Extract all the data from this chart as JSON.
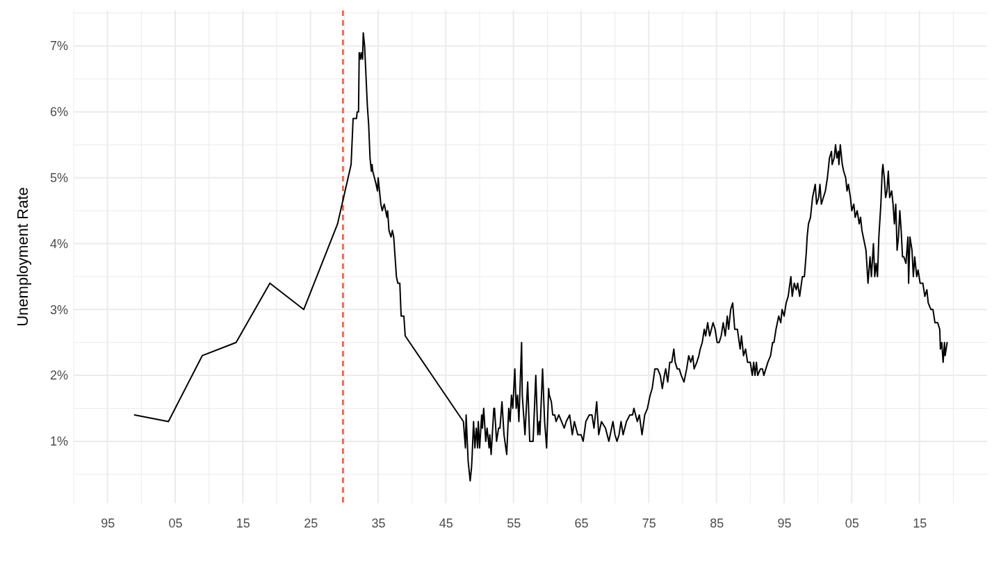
{
  "chart_data": {
    "type": "line",
    "ylabel": "Unemployment Rate",
    "grid": true,
    "xlim": [
      1890,
      2025
    ],
    "ylim": [
      0.06,
      7.54
    ],
    "xticks": [
      {
        "value": 1890,
        "label": null
      },
      {
        "value": 1895,
        "label": "95"
      },
      {
        "value": 1900,
        "label": null
      },
      {
        "value": 1905,
        "label": "05"
      },
      {
        "value": 1910,
        "label": null
      },
      {
        "value": 1915,
        "label": "15"
      },
      {
        "value": 1920,
        "label": null
      },
      {
        "value": 1925,
        "label": "25"
      },
      {
        "value": 1930,
        "label": null
      },
      {
        "value": 1935,
        "label": "35"
      },
      {
        "value": 1940,
        "label": null
      },
      {
        "value": 1945,
        "label": "45"
      },
      {
        "value": 1950,
        "label": null
      },
      {
        "value": 1955,
        "label": "55"
      },
      {
        "value": 1960,
        "label": null
      },
      {
        "value": 1965,
        "label": "65"
      },
      {
        "value": 1970,
        "label": null
      },
      {
        "value": 1975,
        "label": "75"
      },
      {
        "value": 1980,
        "label": null
      },
      {
        "value": 1985,
        "label": "85"
      },
      {
        "value": 1990,
        "label": null
      },
      {
        "value": 1995,
        "label": "95"
      },
      {
        "value": 2000,
        "label": null
      },
      {
        "value": 2005,
        "label": "05"
      },
      {
        "value": 2010,
        "label": null
      },
      {
        "value": 2015,
        "label": "15"
      },
      {
        "value": 2020,
        "label": null
      }
    ],
    "yticks": [
      {
        "value": 0.5,
        "label": null
      },
      {
        "value": 1,
        "label": "1%"
      },
      {
        "value": 1.5,
        "label": null
      },
      {
        "value": 2,
        "label": "2%"
      },
      {
        "value": 2.5,
        "label": null
      },
      {
        "value": 3,
        "label": "3%"
      },
      {
        "value": 3.5,
        "label": null
      },
      {
        "value": 4,
        "label": "4%"
      },
      {
        "value": 4.5,
        "label": null
      },
      {
        "value": 5,
        "label": "5%"
      },
      {
        "value": 5.5,
        "label": null
      },
      {
        "value": 6,
        "label": "6%"
      },
      {
        "value": 6.5,
        "label": null
      },
      {
        "value": 7,
        "label": "7%"
      },
      {
        "value": 7.5,
        "label": null
      }
    ],
    "ref_lines": [
      {
        "axis": "x",
        "value": 1929.8,
        "color": "#ff3b1f",
        "line_style": "dashed"
      }
    ],
    "series": [
      {
        "color": "#000000",
        "x": [
          1899,
          1904,
          1909,
          1914,
          1919,
          1924,
          1929,
          1931.0,
          1931.3,
          1931.8,
          1931.9,
          1932.1,
          1932.2,
          1932.4,
          1932.5,
          1932.7,
          1932.8,
          1933.0,
          1933.4,
          1933.6,
          1933.8,
          1934.0,
          1934.1,
          1934.2,
          1934.7,
          1934.9,
          1935.0,
          1935.2,
          1935.4,
          1935.6,
          1935.9,
          1936.3,
          1936.4,
          1936.6,
          1936.9,
          1937.1,
          1937.3,
          1937.5,
          1937.7,
          1937.9,
          1938.2,
          1938.4,
          1938.8,
          1939.0,
          1947.6,
          1947.9,
          1948.0,
          1948.3,
          1948.6,
          1948.8,
          1948.9,
          1949.1,
          1949.3,
          1949.5,
          1949.7,
          1949.8,
          1950.0,
          1950.3,
          1950.4,
          1950.6,
          1950.9,
          1951.1,
          1951.4,
          1951.5,
          1951.7,
          1952.1,
          1952.2,
          1952.5,
          1952.8,
          1953.0,
          1953.3,
          1953.6,
          1954.0,
          1954.3,
          1954.5,
          1954.7,
          1954.9,
          1955.2,
          1955.4,
          1955.6,
          1955.8,
          1956.2,
          1956.3,
          1956.7,
          1957.1,
          1957.4,
          1957.9,
          1958.3,
          1958.6,
          1958.8,
          1958.9,
          1959.3,
          1959.6,
          1959.9,
          1960.2,
          1960.3,
          1960.6,
          1960.8,
          1961.1,
          1961.3,
          1961.7,
          1962.1,
          1962.5,
          1962.8,
          1963.3,
          1963.7,
          1964.0,
          1964.5,
          1965.0,
          1965.3,
          1965.7,
          1966.2,
          1966.6,
          1966.9,
          1967.3,
          1967.6,
          1968.0,
          1968.6,
          1969.1,
          1969.7,
          1970.0,
          1970.3,
          1970.6,
          1970.9,
          1971.2,
          1971.7,
          1972.2,
          1972.6,
          1972.8,
          1973.3,
          1973.6,
          1974.0,
          1974.4,
          1974.8,
          1975.2,
          1975.5,
          1975.9,
          1976.3,
          1976.7,
          1977.0,
          1977.3,
          1977.5,
          1977.8,
          1978.1,
          1978.4,
          1978.7,
          1978.9,
          1979.2,
          1979.5,
          1979.8,
          1980.2,
          1980.6,
          1980.9,
          1981.2,
          1981.5,
          1981.7,
          1982.1,
          1982.4,
          1982.6,
          1982.9,
          1983.2,
          1983.4,
          1983.7,
          1984.0,
          1984.5,
          1984.8,
          1985.1,
          1985.4,
          1985.7,
          1986.0,
          1986.3,
          1986.6,
          1986.8,
          1987.1,
          1987.4,
          1987.7,
          1988.1,
          1988.5,
          1988.7,
          1989.0,
          1989.3,
          1989.6,
          1990.0,
          1990.3,
          1990.5,
          1990.7,
          1990.9,
          1991.1,
          1991.5,
          1991.8,
          1992.0,
          1992.3,
          1992.6,
          1993.0,
          1993.3,
          1993.5,
          1993.8,
          1994.2,
          1994.5,
          1994.7,
          1995.0,
          1995.3,
          1995.6,
          1996.0,
          1996.2,
          1996.5,
          1996.8,
          1997.0,
          1997.3,
          1997.7,
          1998.0,
          1998.3,
          1998.4,
          1998.6,
          1998.9,
          1999.2,
          1999.6,
          1999.8,
          2000.1,
          2000.3,
          2000.5,
          2000.8,
          2001.1,
          2001.4,
          2001.7,
          2002.0,
          2002.1,
          2002.4,
          2002.6,
          2002.8,
          2003.0,
          2003.1,
          2003.3,
          2003.6,
          2003.8,
          2004.1,
          2004.3,
          2004.5,
          2004.8,
          2005.0,
          2005.3,
          2005.5,
          2005.8,
          2006.1,
          2006.3,
          2006.5,
          2006.7,
          2007.1,
          2007.4,
          2007.7,
          2007.9,
          2008.2,
          2008.4,
          2008.6,
          2008.8,
          2009.0,
          2009.3,
          2009.5,
          2009.6,
          2009.8,
          2010.0,
          2010.2,
          2010.4,
          2010.6,
          2010.9,
          2011.1,
          2011.3,
          2011.5,
          2011.7,
          2011.9,
          2012.1,
          2012.3,
          2012.5,
          2012.7,
          2013.0,
          2013.3,
          2013.4,
          2013.6,
          2013.9,
          2014.1,
          2014.3,
          2014.6,
          2014.8,
          2015.1,
          2015.5,
          2015.8,
          2016.1,
          2016.3,
          2016.7,
          2017.0,
          2017.3,
          2017.7,
          2018.0,
          2018.1,
          2018.3,
          2018.5,
          2018.7,
          2018.8,
          2019.1
        ],
        "values": [
          1.4,
          1.3,
          2.3,
          2.5,
          3.4,
          3.0,
          4.3,
          5.2,
          5.9,
          5.9,
          6.0,
          6.0,
          6.9,
          6.8,
          6.9,
          6.8,
          7.2,
          7.0,
          6.1,
          5.8,
          5.3,
          5.1,
          5.2,
          5.1,
          4.9,
          4.8,
          5.0,
          4.8,
          4.6,
          4.5,
          4.6,
          4.4,
          4.5,
          4.2,
          4.1,
          4.2,
          4.1,
          3.8,
          3.5,
          3.4,
          3.4,
          2.9,
          2.9,
          2.6,
          1.3,
          0.9,
          1.4,
          0.7,
          0.4,
          0.6,
          0.8,
          1.3,
          0.9,
          1.2,
          0.9,
          1.3,
          0.9,
          1.4,
          1.2,
          1.5,
          1.0,
          1.2,
          0.9,
          1.1,
          0.8,
          1.5,
          1.5,
          1.0,
          1.2,
          1.2,
          1.6,
          1.1,
          0.8,
          1.5,
          1.3,
          1.7,
          1.5,
          2.1,
          1.5,
          1.7,
          1.3,
          2.5,
          1.7,
          1.1,
          1.9,
          1.0,
          1.0,
          2.0,
          1.1,
          1.3,
          1.1,
          2.1,
          1.3,
          0.9,
          1.8,
          1.7,
          1.6,
          1.4,
          1.4,
          1.3,
          1.4,
          1.3,
          1.2,
          1.3,
          1.4,
          1.1,
          1.3,
          1.1,
          1.1,
          1.0,
          1.3,
          1.4,
          1.4,
          1.2,
          1.6,
          1.1,
          1.3,
          1.2,
          1.0,
          1.3,
          1.1,
          1.0,
          1.1,
          1.3,
          1.1,
          1.3,
          1.4,
          1.4,
          1.5,
          1.3,
          1.4,
          1.1,
          1.4,
          1.5,
          1.7,
          1.8,
          2.1,
          2.1,
          2.0,
          1.8,
          2.0,
          2.1,
          1.9,
          2.2,
          2.2,
          2.4,
          2.2,
          2.1,
          2.1,
          2.0,
          1.9,
          2.1,
          2.3,
          2.2,
          2.3,
          2.1,
          2.2,
          2.3,
          2.4,
          2.5,
          2.7,
          2.6,
          2.8,
          2.6,
          2.8,
          2.7,
          2.5,
          2.5,
          2.6,
          2.8,
          2.6,
          2.9,
          2.7,
          3.0,
          3.1,
          2.7,
          2.7,
          2.4,
          2.6,
          2.3,
          2.4,
          2.2,
          2.2,
          2.0,
          2.2,
          2.0,
          2.2,
          2.0,
          2.1,
          2.1,
          2.0,
          2.1,
          2.2,
          2.3,
          2.5,
          2.5,
          2.7,
          2.9,
          2.8,
          3.0,
          2.9,
          3.1,
          3.2,
          3.5,
          3.2,
          3.4,
          3.3,
          3.4,
          3.2,
          3.5,
          3.5,
          3.9,
          4.1,
          4.3,
          4.4,
          4.7,
          4.9,
          4.6,
          4.7,
          4.9,
          4.6,
          4.7,
          4.8,
          5.0,
          5.3,
          5.4,
          5.2,
          5.3,
          5.5,
          5.3,
          5.4,
          5.2,
          5.5,
          5.2,
          5.1,
          5.0,
          4.8,
          4.9,
          4.7,
          4.5,
          4.6,
          4.4,
          4.5,
          4.3,
          4.4,
          4.2,
          4.1,
          3.9,
          3.4,
          3.8,
          3.5,
          4.0,
          3.5,
          3.7,
          3.5,
          4.1,
          4.6,
          5.1,
          5.2,
          5.0,
          4.7,
          4.8,
          5.1,
          4.7,
          4.8,
          4.6,
          4.3,
          4.6,
          3.9,
          4.1,
          4.5,
          4.2,
          3.8,
          3.8,
          3.7,
          4.1,
          3.4,
          4.1,
          3.9,
          3.5,
          3.8,
          3.5,
          3.6,
          3.4,
          3.4,
          3.2,
          3.3,
          3.1,
          3.0,
          3.0,
          2.8,
          2.8,
          2.7,
          2.4,
          2.5,
          2.2,
          2.5,
          2.3,
          2.5
        ]
      }
    ]
  }
}
